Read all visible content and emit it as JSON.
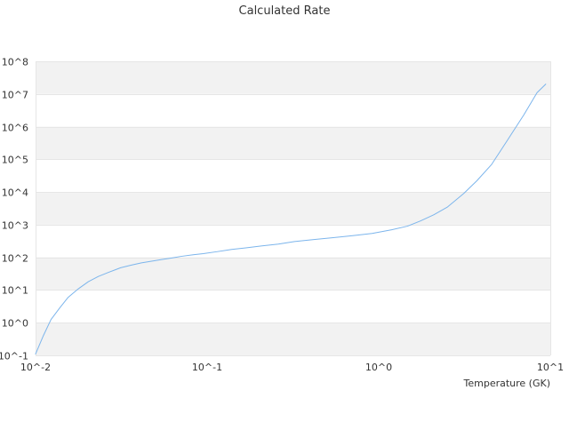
{
  "chart_data": {
    "type": "line",
    "title": "Calculated Rate",
    "xlabel": "Temperature (GK)",
    "ylabel": "",
    "x_scale": "log",
    "y_scale": "log",
    "xlim": [
      0.01,
      10
    ],
    "ylim": [
      0.1,
      100000000
    ],
    "grid": "alternating horizontal bands",
    "legend": "none",
    "x_ticks": [
      {
        "value": 0.01,
        "label": "10^-2"
      },
      {
        "value": 0.1,
        "label": "10^-1"
      },
      {
        "value": 1,
        "label": "10^0"
      },
      {
        "value": 10,
        "label": "10^1"
      }
    ],
    "y_ticks": [
      {
        "value": 0.1,
        "label": "10^-1"
      },
      {
        "value": 1,
        "label": "10^0"
      },
      {
        "value": 10,
        "label": "10^1"
      },
      {
        "value": 100,
        "label": "10^2"
      },
      {
        "value": 1000,
        "label": "10^3"
      },
      {
        "value": 10000,
        "label": "10^4"
      },
      {
        "value": 100000,
        "label": "10^5"
      },
      {
        "value": 1000000,
        "label": "10^6"
      },
      {
        "value": 10000000,
        "label": "10^7"
      },
      {
        "value": 100000000,
        "label": "10^8"
      }
    ],
    "series": [
      {
        "color": "#7cb5ec",
        "x": [
          0.01,
          0.0111,
          0.0123,
          0.0138,
          0.0155,
          0.0178,
          0.0203,
          0.0232,
          0.0267,
          0.0313,
          0.0362,
          0.0414,
          0.0474,
          0.0543,
          0.0622,
          0.0712,
          0.0829,
          0.0949,
          0.115,
          0.139,
          0.168,
          0.209,
          0.26,
          0.323,
          0.419,
          0.543,
          0.705,
          0.915,
          1.19,
          1.47,
          1.75,
          2.09,
          2.52,
          3.13,
          3.73,
          4.55,
          5.52,
          7.01,
          8.37,
          9.4
        ],
        "values": [
          0.11,
          0.4,
          1.25,
          2.8,
          6.0,
          11.0,
          18.0,
          26.0,
          35.0,
          48.0,
          58.0,
          68.0,
          76.0,
          86.0,
          96.0,
          108.0,
          120.0,
          130.0,
          150.0,
          175.0,
          195.0,
          225.0,
          255.0,
          305.0,
          350.0,
          400.0,
          460.0,
          540.0,
          700.0,
          900.0,
          1300.0,
          2000.0,
          3500.0,
          9000.0,
          22000.0,
          70000.0,
          330000.0,
          2300000.0,
          11000000.0,
          20000000.0
        ]
      }
    ]
  }
}
